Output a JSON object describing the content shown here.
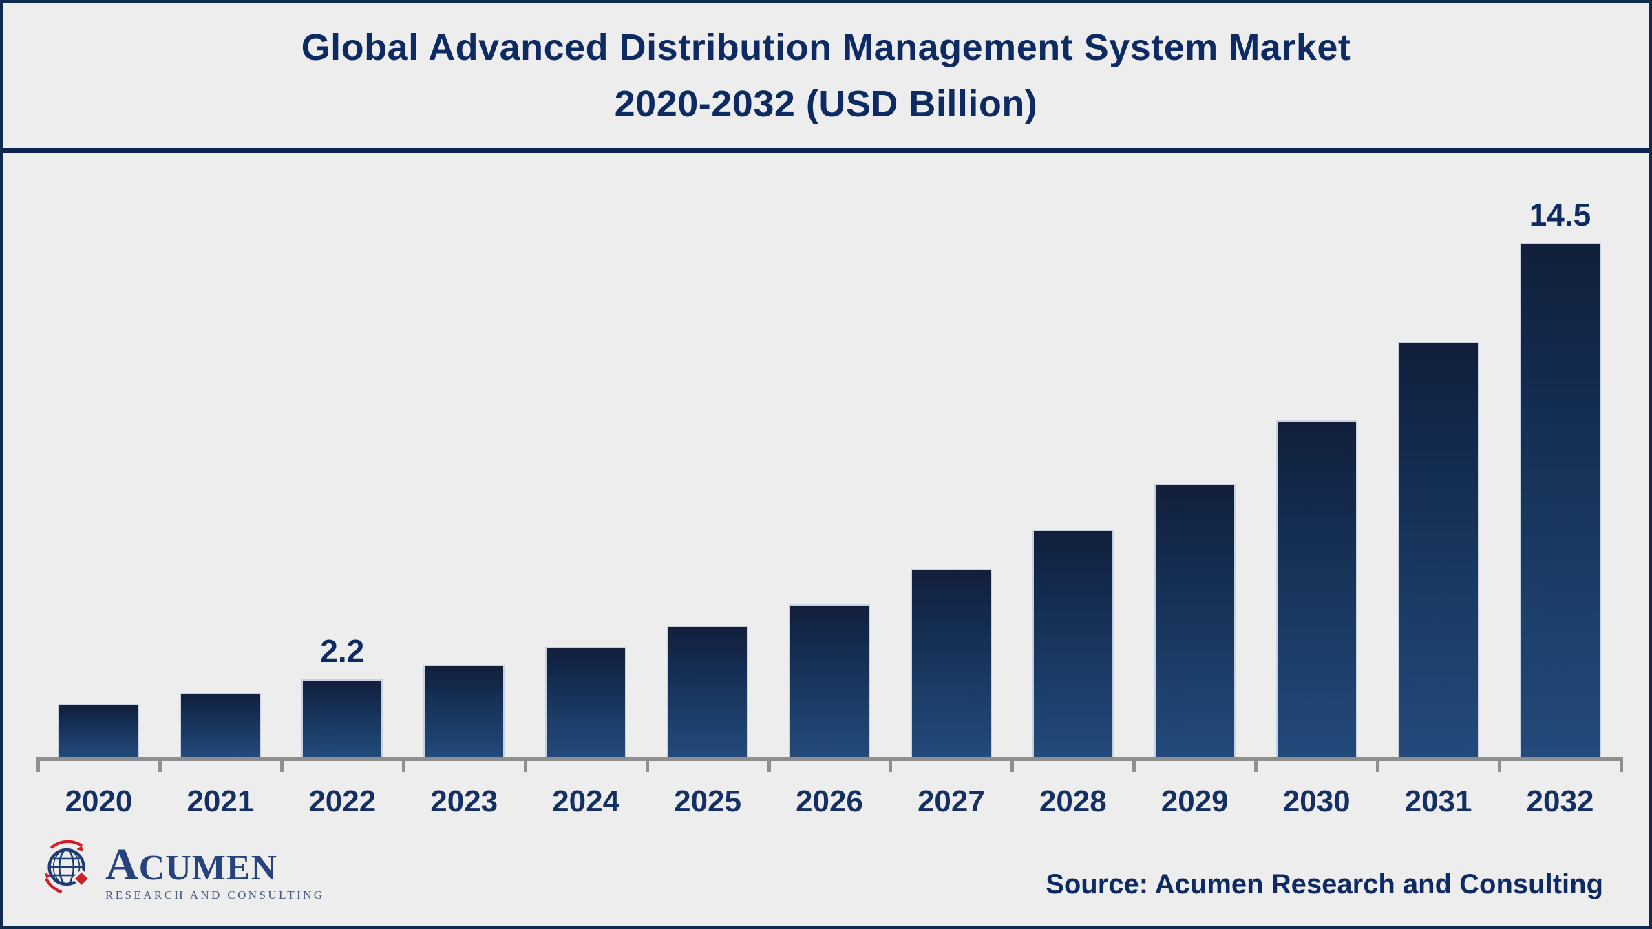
{
  "title": {
    "line1": "Global Advanced Distribution Management System Market",
    "line2": "2020-2032 (USD Billion)"
  },
  "chart_data": {
    "type": "bar",
    "title": "Global Advanced Distribution Management System Market 2020-2032 (USD Billion)",
    "categories": [
      "2020",
      "2021",
      "2022",
      "2023",
      "2024",
      "2025",
      "2026",
      "2027",
      "2028",
      "2029",
      "2030",
      "2031",
      "2032"
    ],
    "values": [
      1.5,
      1.8,
      2.2,
      2.6,
      3.1,
      3.7,
      4.3,
      5.3,
      6.4,
      7.7,
      9.5,
      11.7,
      14.5
    ],
    "data_labels": [
      "",
      "",
      "2.2",
      "",
      "",
      "",
      "",
      "",
      "",
      "",
      "",
      "",
      "14.5"
    ],
    "xlabel": "",
    "ylabel": "USD Billion",
    "ylim": [
      0,
      16
    ],
    "grid": false,
    "legend": false,
    "bar_gradient": [
      "#121f3a",
      "#234a7b"
    ],
    "axis_color": "#8f8f8f",
    "label_color": "#0d2a62"
  },
  "footer": {
    "source_prefix": "Source:",
    "source_text": "Acumen Research and Consulting",
    "logo_name_first": "A",
    "logo_name_rest": "CUMEN",
    "logo_subtitle": "RESEARCH AND CONSULTING"
  },
  "colors": {
    "background": "#ededee",
    "frame_border": "#12294f",
    "title_text": "#0d2a62",
    "separator": "#0d2453",
    "year_label": "#143062",
    "logo_navy": "#27437c",
    "logo_red": "#cf2027"
  }
}
